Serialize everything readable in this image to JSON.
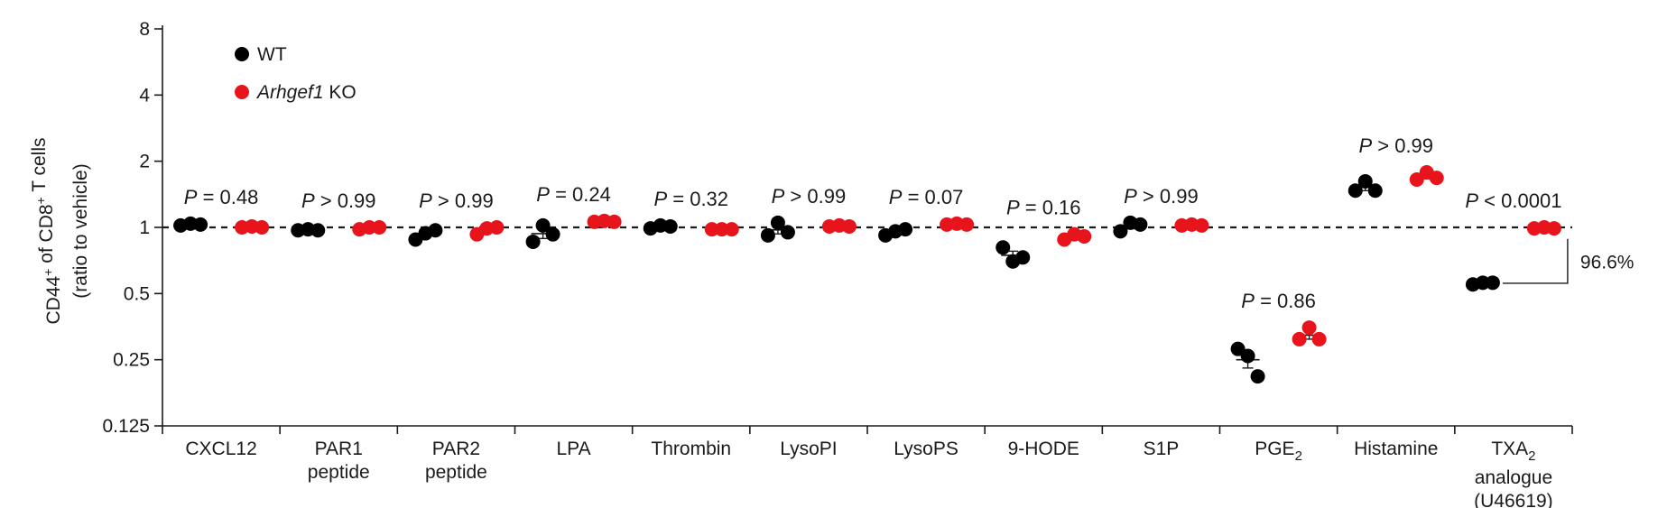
{
  "chart_data": {
    "type": "scatter",
    "y_axis": {
      "label_line1": "CD44",
      "label_sup1": "+",
      "label_mid": " of CD8",
      "label_sup2": "+",
      "label_end": " T cells",
      "label_line2": "(ratio to vehicle)",
      "scale": "log2",
      "ylim": [
        0.125,
        8
      ],
      "ticks": [
        0.125,
        0.25,
        0.5,
        1,
        2,
        4,
        8
      ],
      "tick_labels": [
        "0.125",
        "0.25",
        "0.5",
        "1",
        "2",
        "4",
        "8"
      ],
      "reference_line": 1
    },
    "legend": {
      "placement": "top-left",
      "entries": [
        {
          "name": "WT",
          "italic_part": "",
          "rest": "WT",
          "color": "#000000"
        },
        {
          "name": "Arhgef1 KO",
          "italic_part": "Arhgef1",
          "rest": " KO",
          "color": "#e8141b"
        }
      ]
    },
    "series_colors": {
      "WT": "#000000",
      "KO": "#e8141b"
    },
    "categories": [
      {
        "lines": [
          "CXCL12"
        ],
        "sub": "",
        "p_text": " = 0.48",
        "wt": [
          1.02,
          1.04,
          1.03
        ],
        "ko": [
          1.0,
          1.01,
          1.0
        ]
      },
      {
        "lines": [
          "PAR1",
          "peptide"
        ],
        "sub": "",
        "p_text": " > 0.99",
        "wt": [
          0.97,
          0.98,
          0.97
        ],
        "ko": [
          0.98,
          1.0,
          1.0
        ]
      },
      {
        "lines": [
          "PAR2",
          "peptide"
        ],
        "sub": "",
        "p_text": " > 0.99",
        "wt": [
          0.88,
          0.94,
          0.97
        ],
        "ko": [
          0.93,
          0.99,
          1.0
        ]
      },
      {
        "lines": [
          "LPA"
        ],
        "sub": "",
        "p_text": " = 0.24",
        "wt": [
          0.86,
          1.02,
          0.93
        ],
        "ko": [
          1.06,
          1.07,
          1.06
        ]
      },
      {
        "lines": [
          "Thrombin"
        ],
        "sub": "",
        "p_text": " = 0.32",
        "wt": [
          0.99,
          1.02,
          1.01
        ],
        "ko": [
          0.98,
          0.98,
          0.98
        ]
      },
      {
        "lines": [
          "LysoPI"
        ],
        "sub": "",
        "p_text": " > 0.99",
        "wt": [
          0.92,
          1.05,
          0.95
        ],
        "ko": [
          1.01,
          1.02,
          1.01
        ]
      },
      {
        "lines": [
          "LysoPS"
        ],
        "sub": "",
        "p_text": " = 0.07",
        "wt": [
          0.92,
          0.96,
          0.98
        ],
        "ko": [
          1.03,
          1.04,
          1.03
        ]
      },
      {
        "lines": [
          "9-HODE"
        ],
        "sub": "",
        "p_text": " = 0.16",
        "wt": [
          0.81,
          0.7,
          0.73
        ],
        "ko": [
          0.88,
          0.93,
          0.91
        ]
      },
      {
        "lines": [
          "S1P"
        ],
        "sub": "",
        "p_text": " > 0.99",
        "wt": [
          0.96,
          1.05,
          1.03
        ],
        "ko": [
          1.02,
          1.03,
          1.02
        ]
      },
      {
        "lines": [
          "PGE"
        ],
        "sub": "2",
        "p_text": " = 0.86",
        "wt": [
          0.28,
          0.26,
          0.21
        ],
        "ko": [
          0.31,
          0.35,
          0.31
        ]
      },
      {
        "lines": [
          "Histamine"
        ],
        "sub": "",
        "p_text": " > 0.99",
        "wt": [
          1.47,
          1.62,
          1.47
        ],
        "ko": [
          1.65,
          1.78,
          1.68
        ]
      },
      {
        "lines": [
          "TXA",
          "analogue",
          "(U46619)"
        ],
        "sub": "2",
        "p_text": " < 0.0001",
        "wt": [
          0.55,
          0.56,
          0.56
        ],
        "ko": [
          0.99,
          1.0,
          0.99
        ]
      }
    ],
    "p_prefix": "P",
    "annotation": {
      "text": "96.6%",
      "category_index": 11
    }
  }
}
